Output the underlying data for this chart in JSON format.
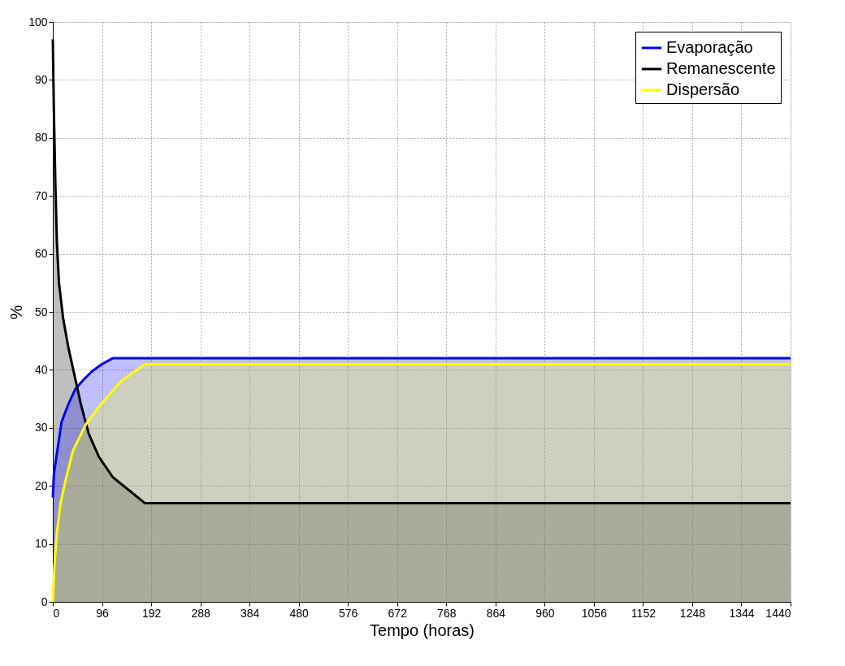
{
  "chart_data": {
    "type": "area",
    "xlabel": "Tempo (horas)",
    "ylabel": "%",
    "xlim": [
      0,
      1440
    ],
    "xticks": [
      0,
      96,
      192,
      288,
      384,
      480,
      576,
      672,
      768,
      864,
      960,
      1056,
      1152,
      1248,
      1344,
      1440
    ],
    "ylim": [
      0,
      100
    ],
    "yticks": [
      0,
      10,
      20,
      30,
      40,
      50,
      60,
      70,
      80,
      90,
      100
    ],
    "grid": true,
    "legend": "top right",
    "line_style": "solid",
    "series": [
      {
        "name": "Evaporação",
        "color": "#0000ff",
        "x": [
          0,
          2,
          7,
          17,
          30,
          44,
          60,
          76,
          96,
          117,
          1440
        ],
        "values": [
          18,
          22,
          25,
          31,
          34,
          36.7,
          38.3,
          39.7,
          41,
          42,
          42
        ]
      },
      {
        "name": "Remanescente",
        "color": "#000000",
        "x": [
          0,
          2,
          5,
          8,
          12,
          20,
          30,
          40,
          55,
          70,
          90,
          117,
          180,
          1440
        ],
        "values": [
          97,
          85,
          72,
          62,
          55,
          49,
          44,
          40,
          34,
          29,
          25,
          21.5,
          17,
          17
        ]
      },
      {
        "name": "Dispersão",
        "color": "#ffff00",
        "x": [
          0,
          3,
          8,
          15,
          25,
          39,
          65,
          97,
          134,
          180,
          1440
        ],
        "values": [
          0,
          6,
          12,
          17,
          21,
          26,
          30.7,
          34.4,
          38.1,
          41,
          41
        ]
      }
    ]
  }
}
